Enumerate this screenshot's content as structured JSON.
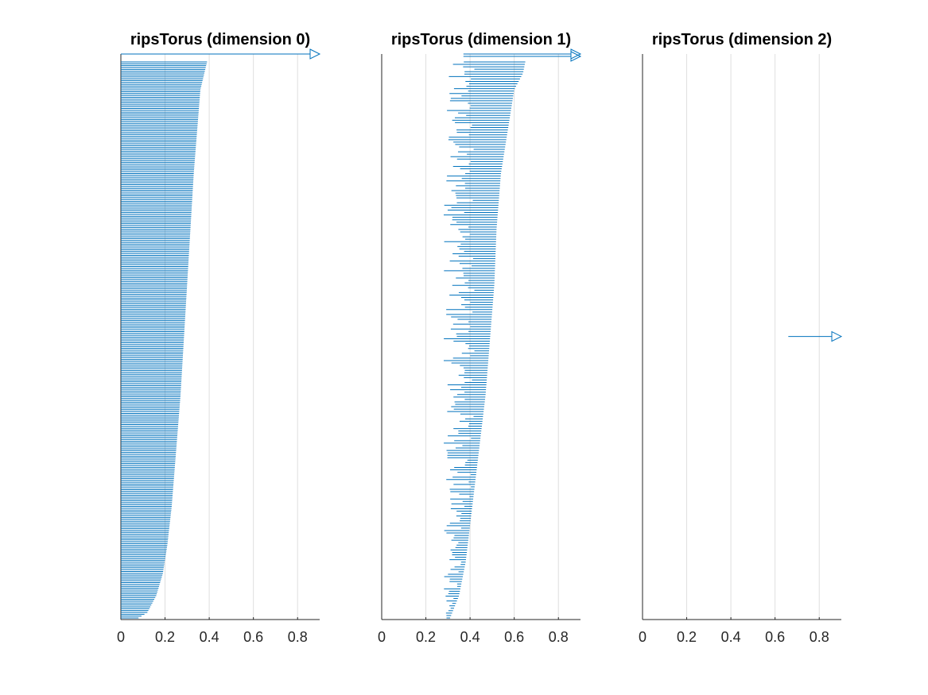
{
  "figure": {
    "background": "#ffffff",
    "bar_color": "#0072bd",
    "grid_color": "#dedede",
    "axis_color": "#262626"
  },
  "chart_data": [
    {
      "type": "barcode",
      "title": "ripsTorus (dimension 0)",
      "xlim": [
        0,
        0.9
      ],
      "xticks": [
        "0",
        "0.2",
        "0.4",
        "0.6",
        "0.8"
      ],
      "xgrid": true,
      "infinite_bars": [
        {
          "birth": 0,
          "death": "Inf"
        }
      ],
      "finite_bars": {
        "count": 300,
        "birth_all": 0,
        "death_sorted_desc": [
          {
            "rank": 0.0,
            "death": 0.39
          },
          {
            "rank": 0.05,
            "death": 0.36
          },
          {
            "rank": 0.1,
            "death": 0.35
          },
          {
            "rank": 0.2,
            "death": 0.33
          },
          {
            "rank": 0.3,
            "death": 0.315
          },
          {
            "rank": 0.4,
            "death": 0.3
          },
          {
            "rank": 0.5,
            "death": 0.285
          },
          {
            "rank": 0.6,
            "death": 0.27
          },
          {
            "rank": 0.7,
            "death": 0.25
          },
          {
            "rank": 0.8,
            "death": 0.23
          },
          {
            "rank": 0.87,
            "death": 0.21
          },
          {
            "rank": 0.92,
            "death": 0.19
          },
          {
            "rank": 0.96,
            "death": 0.16
          },
          {
            "rank": 0.99,
            "death": 0.12
          },
          {
            "rank": 1.0,
            "death": 0.08
          }
        ]
      }
    },
    {
      "type": "barcode",
      "title": "ripsTorus (dimension 1)",
      "xlim": [
        0,
        0.9
      ],
      "xticks": [
        "0",
        "0.2",
        "0.4",
        "0.6",
        "0.8"
      ],
      "xgrid": true,
      "infinite_bars": [
        {
          "birth": 0.37,
          "death": "Inf"
        },
        {
          "birth": 0.37,
          "death": "Inf"
        }
      ],
      "finite_bars": {
        "count": 230,
        "birth_range": [
          0.28,
          0.42
        ],
        "death_sorted_desc": [
          {
            "rank": 0.0,
            "death": 0.65
          },
          {
            "rank": 0.02,
            "death": 0.64
          },
          {
            "rank": 0.05,
            "death": 0.6
          },
          {
            "rank": 0.1,
            "death": 0.58
          },
          {
            "rank": 0.2,
            "death": 0.54
          },
          {
            "rank": 0.3,
            "death": 0.52
          },
          {
            "rank": 0.4,
            "death": 0.51
          },
          {
            "rank": 0.5,
            "death": 0.49
          },
          {
            "rank": 0.6,
            "death": 0.47
          },
          {
            "rank": 0.7,
            "death": 0.44
          },
          {
            "rank": 0.8,
            "death": 0.41
          },
          {
            "rank": 0.9,
            "death": 0.38
          },
          {
            "rank": 0.96,
            "death": 0.35
          },
          {
            "rank": 1.0,
            "death": 0.31
          }
        ]
      }
    },
    {
      "type": "barcode",
      "title": "ripsTorus (dimension 2)",
      "xlim": [
        0,
        0.9
      ],
      "xticks": [
        "0",
        "0.2",
        "0.4",
        "0.6",
        "0.8"
      ],
      "xgrid": true,
      "infinite_bars": [
        {
          "birth": 0.66,
          "death": "Inf"
        }
      ],
      "finite_bars": {
        "count": 0
      }
    }
  ]
}
